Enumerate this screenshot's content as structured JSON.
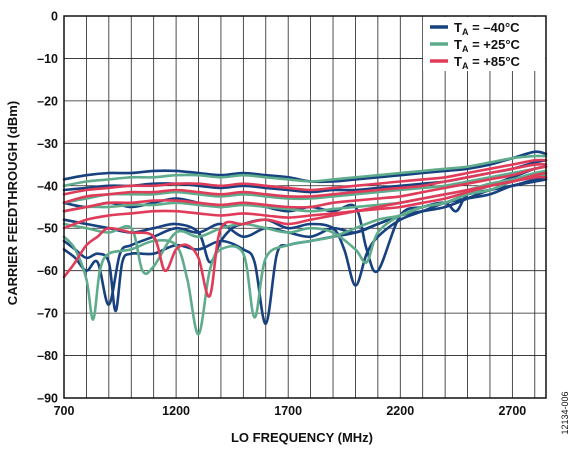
{
  "chart_data": {
    "type": "line",
    "xlabel": "LO FREQUENCY (MHz)",
    "ylabel": "CARRIER FEEDTHROUGH (dBm)",
    "xlim": [
      700,
      2850
    ],
    "ylim": [
      -90,
      0
    ],
    "xticks": [
      700,
      1200,
      1700,
      2200,
      2700
    ],
    "yticks": [
      0,
      -10,
      -20,
      -30,
      -40,
      -50,
      -60,
      -70,
      -80,
      -90
    ],
    "xtick_labels": [
      "700",
      "1200",
      "1700",
      "2200",
      "2700"
    ],
    "ytick_labels": [
      "0",
      "–10",
      "–20",
      "–30",
      "–40",
      "–50",
      "–60",
      "–70",
      "–80",
      "–90"
    ],
    "grid": true,
    "legend_position": "top-right",
    "series": [
      {
        "legend_main": "T",
        "legend_sub": "A",
        "legend_value": " = –40°C",
        "color": "#17417f",
        "curves": [
          {
            "x": [
              700,
              800,
              900,
              1000,
              1100,
              1200,
              1300,
              1400,
              1500,
              1600,
              1700,
              1800,
              1900,
              2000,
              2100,
              2200,
              2300,
              2400,
              2500,
              2600,
              2700,
              2800,
              2850
            ],
            "y": [
              -38.5,
              -37.5,
              -37,
              -37,
              -36.5,
              -36.5,
              -37,
              -37.5,
              -37,
              -37.5,
              -38,
              -39,
              -39,
              -38.5,
              -38,
              -37.5,
              -37,
              -36.5,
              -36,
              -35,
              -33.5,
              -32,
              -32.5
            ]
          },
          {
            "x": [
              700,
              750,
              800,
              850,
              900,
              950,
              1000,
              1100,
              1200,
              1300,
              1400,
              1500,
              1600,
              1700,
              1800,
              1900,
              2000,
              2100,
              2200,
              2300,
              2400,
              2500,
              2600,
              2700,
              2800,
              2850
            ],
            "y": [
              -55,
              -57,
              -60,
              -58,
              -68,
              -56,
              -54,
              -52,
              -50,
              -51,
              -49,
              -52,
              -50,
              -51,
              -52,
              -50,
              -51,
              -49,
              -47,
              -45,
              -44,
              -42,
              -41,
              -40,
              -39,
              -38.5
            ]
          },
          {
            "x": [
              700,
              750,
              800,
              850,
              900,
              930,
              960,
              1000,
              1100,
              1200,
              1300,
              1400,
              1500,
              1550,
              1600,
              1650,
              1700,
              1800,
              1900,
              2000,
              2100,
              2200,
              2300,
              2400,
              2500,
              2600,
              2700,
              2800,
              2850
            ],
            "y": [
              -53,
              -55,
              -57,
              -56,
              -58,
              -69.5,
              -58,
              -56,
              -56,
              -54,
              -55,
              -53,
              -55,
              -58,
              -72.5,
              -56,
              -54,
              -53,
              -52,
              -51,
              -49,
              -47,
              -46,
              -45,
              -43,
              -41,
              -40,
              -38.5,
              -38
            ]
          },
          {
            "x": [
              700,
              800,
              900,
              1000,
              1100,
              1200,
              1300,
              1350,
              1400,
              1450,
              1500,
              1600,
              1700,
              1800,
              1900,
              1950,
              2000,
              2050,
              2100,
              2200,
              2300,
              2400,
              2500,
              2600,
              2700,
              2800,
              2850
            ],
            "y": [
              -48,
              -49,
              -50,
              -51,
              -50,
              -49,
              -51,
              -58,
              -53,
              -50,
              -49,
              -48,
              -50,
              -49,
              -50,
              -55,
              -63.5,
              -56,
              -52,
              -48,
              -46,
              -44,
              -43,
              -42,
              -40,
              -39,
              -38.5
            ]
          },
          {
            "x": [
              700,
              800,
              900,
              1000,
              1100,
              1200,
              1300,
              1400,
              1500,
              1600,
              1700,
              1800,
              1900,
              2000,
              2050,
              2100,
              2200,
              2300,
              2400,
              2450,
              2500,
              2600,
              2700,
              2800,
              2850
            ],
            "y": [
              -44,
              -45,
              -44,
              -45,
              -44,
              -43,
              -44,
              -45,
              -44,
              -45,
              -46,
              -45,
              -46,
              -45,
              -55,
              -60,
              -47,
              -45,
              -44,
              -46,
              -42,
              -40,
              -38,
              -36,
              -35.5
            ]
          },
          {
            "x": [
              700,
              800,
              900,
              1000,
              1100,
              1200,
              1300,
              1400,
              1500,
              1600,
              1700,
              1800,
              1900,
              2000,
              2100,
              2200,
              2300,
              2400,
              2500,
              2600,
              2700,
              2800,
              2850
            ],
            "y": [
              -41,
              -40.5,
              -40,
              -40,
              -39.5,
              -39.5,
              -40,
              -40.5,
              -40,
              -40.5,
              -41,
              -41.5,
              -41,
              -41,
              -40.5,
              -40,
              -39.5,
              -39,
              -38,
              -37,
              -36,
              -34.5,
              -34
            ]
          }
        ]
      },
      {
        "legend_main": "T",
        "legend_sub": "A",
        "legend_value": " = +25°C",
        "color": "#5fac8c",
        "curves": [
          {
            "x": [
              700,
              800,
              900,
              1000,
              1100,
              1200,
              1300,
              1400,
              1500,
              1600,
              1700,
              1800,
              1900,
              2000,
              2100,
              2200,
              2300,
              2400,
              2500,
              2600,
              2700,
              2800,
              2850
            ],
            "y": [
              -40,
              -39,
              -38.5,
              -38,
              -38,
              -37.5,
              -37.5,
              -38,
              -37.5,
              -38,
              -38.5,
              -39,
              -38.5,
              -38,
              -37.5,
              -37,
              -36.5,
              -36,
              -35.5,
              -34.5,
              -33.5,
              -33,
              -33
            ]
          },
          {
            "x": [
              700,
              750,
              800,
              830,
              860,
              900,
              1000,
              1100,
              1200,
              1250,
              1300,
              1350,
              1400,
              1500,
              1550,
              1600,
              1700,
              1800,
              1900,
              2000,
              2100,
              2200,
              2300,
              2400,
              2500,
              2600,
              2700,
              2800,
              2850
            ],
            "y": [
              -52,
              -55,
              -62,
              -71.5,
              -60,
              -56,
              -55,
              -53,
              -54,
              -62,
              -75,
              -60,
              -55,
              -56,
              -71,
              -57,
              -54,
              -53,
              -52,
              -50,
              -48,
              -47,
              -45,
              -44,
              -42,
              -40,
              -39,
              -37.5,
              -37
            ]
          },
          {
            "x": [
              700,
              800,
              900,
              1000,
              1050,
              1100,
              1200,
              1300,
              1400,
              1500,
              1600,
              1700,
              1800,
              1900,
              2000,
              2050,
              2100,
              2200,
              2300,
              2400,
              2500,
              2600,
              2700,
              2800,
              2850
            ],
            "y": [
              -49,
              -50,
              -51,
              -50,
              -60,
              -59,
              -51,
              -52,
              -50,
              -49,
              -50,
              -51,
              -50,
              -51,
              -55,
              -58,
              -51,
              -47,
              -45,
              -44,
              -42,
              -41,
              -39,
              -38,
              -37.5
            ]
          },
          {
            "x": [
              700,
              800,
              900,
              1000,
              1100,
              1200,
              1300,
              1400,
              1500,
              1600,
              1700,
              1800,
              1900,
              2000,
              2100,
              2200,
              2300,
              2400,
              2500,
              2600,
              2700,
              2800,
              2850
            ],
            "y": [
              -44,
              -43,
              -42,
              -42,
              -42,
              -41.5,
              -42,
              -42.5,
              -42,
              -42.5,
              -43,
              -43,
              -42.5,
              -42,
              -41.5,
              -41,
              -40.5,
              -40,
              -39,
              -38,
              -37,
              -36,
              -35.5
            ]
          },
          {
            "x": [
              700,
              800,
              900,
              1000,
              1100,
              1200,
              1300,
              1400,
              1500,
              1600,
              1700,
              1800,
              1900,
              2000,
              2100,
              2200,
              2300,
              2400,
              2500,
              2600,
              2700,
              2800,
              2850
            ],
            "y": [
              -46,
              -45,
              -45,
              -44.5,
              -44.5,
              -44,
              -44.5,
              -45,
              -44.5,
              -45,
              -45.5,
              -46,
              -45.5,
              -45,
              -44.5,
              -44,
              -43,
              -42,
              -41,
              -39.5,
              -38.5,
              -37,
              -36.5
            ]
          }
        ]
      },
      {
        "legend_main": "T",
        "legend_sub": "A",
        "legend_value": " = +85°C",
        "color": "#e03c5a",
        "curves": [
          {
            "x": [
              700,
              800,
              900,
              1000,
              1100,
              1200,
              1300,
              1400,
              1500,
              1600,
              1700,
              1800,
              1900,
              2000,
              2100,
              2200,
              2300,
              2400,
              2500,
              2600,
              2700,
              2800,
              2850
            ],
            "y": [
              -42,
              -41,
              -40.5,
              -40,
              -40,
              -39.5,
              -39.5,
              -40,
              -39.5,
              -40,
              -40.5,
              -41,
              -40.5,
              -40,
              -39.5,
              -39,
              -38.5,
              -38,
              -37,
              -36,
              -35,
              -34,
              -34
            ]
          },
          {
            "x": [
              700,
              750,
              800,
              850,
              900,
              1000,
              1100,
              1150,
              1200,
              1250,
              1300,
              1350,
              1400,
              1500,
              1600,
              1700,
              1800,
              1900,
              2000,
              2100,
              2200,
              2300,
              2400,
              2500,
              2600,
              2700,
              2800,
              2850
            ],
            "y": [
              -61.5,
              -58,
              -54,
              -52,
              -50,
              -51,
              -52,
              -60,
              -55,
              -54,
              -57,
              -66,
              -50,
              -49,
              -48,
              -49,
              -48,
              -47,
              -46,
              -45,
              -44,
              -43,
              -42,
              -41,
              -40,
              -39,
              -38,
              -38
            ]
          },
          {
            "x": [
              700,
              800,
              900,
              1000,
              1100,
              1200,
              1300,
              1400,
              1500,
              1600,
              1700,
              1800,
              1900,
              2000,
              2100,
              2200,
              2300,
              2400,
              2500,
              2600,
              2700,
              2800,
              2850
            ],
            "y": [
              -46,
              -45,
              -44,
              -44,
              -43.5,
              -43.5,
              -44,
              -44.5,
              -44,
              -44.5,
              -45,
              -45,
              -44,
              -43.5,
              -43,
              -42.5,
              -41.5,
              -40.5,
              -39.5,
              -38.5,
              -37.5,
              -36,
              -35.5
            ]
          },
          {
            "x": [
              700,
              800,
              900,
              1000,
              1100,
              1200,
              1300,
              1400,
              1500,
              1600,
              1700,
              1800,
              1900,
              2000,
              2100,
              2200,
              2300,
              2400,
              2500,
              2600,
              2700,
              2800,
              2850
            ],
            "y": [
              -50,
              -48,
              -47,
              -46.5,
              -46,
              -46,
              -46.5,
              -47,
              -46.5,
              -47,
              -47.5,
              -47,
              -46.5,
              -46,
              -45.5,
              -45,
              -44,
              -43,
              -41.5,
              -40,
              -39,
              -37.5,
              -37
            ]
          },
          {
            "x": [
              700,
              800,
              900,
              1000,
              1100,
              1200,
              1300,
              1400,
              1500,
              1600,
              1700,
              1800,
              1900,
              2000,
              2100,
              2200,
              2300,
              2400,
              2500,
              2600,
              2700,
              2800,
              2850
            ],
            "y": [
              -44,
              -42.5,
              -42,
              -41.5,
              -41.5,
              -41,
              -41.5,
              -42,
              -41.5,
              -42,
              -42.5,
              -42.5,
              -42,
              -41.5,
              -41,
              -40.5,
              -40,
              -39,
              -38,
              -37,
              -36,
              -35,
              -35
            ]
          }
        ]
      }
    ]
  },
  "side_note": "12134-006"
}
